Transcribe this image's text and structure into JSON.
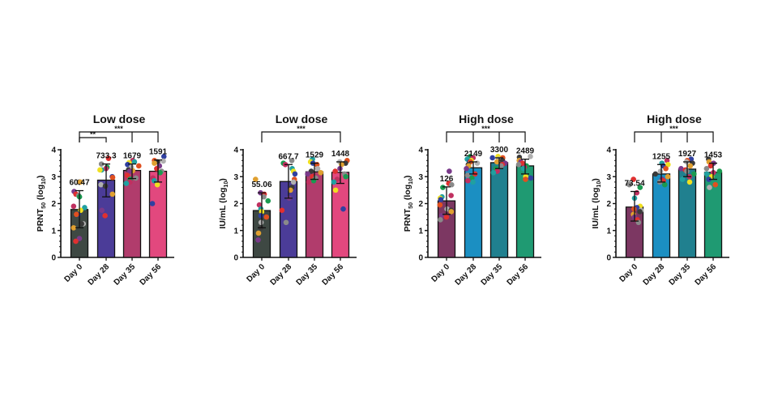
{
  "chart_data": [
    {
      "type": "bar",
      "title": "Low dose",
      "ylabel": {
        "main": "PRNT",
        "sub": "50",
        "suffix": " (log",
        "sub2": "10",
        "end": ")"
      },
      "ylim": [
        0,
        4
      ],
      "yticks": [
        "0",
        "1",
        "2",
        "3",
        "4"
      ],
      "categories": [
        "Day 0",
        "Day 28",
        "Day 35",
        "Day 56"
      ],
      "data_labels": [
        "60.47",
        "733.3",
        "1679",
        "1591"
      ],
      "values": [
        1.78,
        2.87,
        3.23,
        3.2
      ],
      "error": [
        [
          1.1,
          2.48
        ],
        [
          2.25,
          3.47
        ],
        [
          2.93,
          3.47
        ],
        [
          2.8,
          3.62
        ]
      ],
      "bar_colors": [
        "#3e4843",
        "#4b3c98",
        "#b13c6c",
        "#e2487e"
      ],
      "significance": [
        {
          "label": "**",
          "from": 0,
          "to": 1,
          "ticks": []
        },
        {
          "label": "***",
          "from": 0,
          "to": 3,
          "ticks": [
            2
          ]
        }
      ],
      "points": [
        [
          2.8,
          2.8,
          2.45,
          2.35,
          2.3,
          2.25,
          1.9,
          1.85,
          1.75,
          1.6,
          1.6,
          1.25,
          1.25,
          1.1,
          0.7,
          0.6
        ],
        [
          3.68,
          3.47,
          3.35,
          3.3,
          3.25,
          3.25,
          3.0,
          2.97,
          2.7,
          2.65,
          2.35,
          1.75,
          1.55
        ],
        [
          3.6,
          3.55,
          3.52,
          3.45,
          3.4,
          3.35,
          3.25,
          3.22,
          3.2,
          3.05,
          2.95,
          2.9,
          2.8,
          2.75
        ],
        [
          3.75,
          3.6,
          3.58,
          3.55,
          3.5,
          3.4,
          3.3,
          3.2,
          3.15,
          2.95,
          2.85,
          2.7,
          2.0
        ]
      ]
    },
    {
      "type": "bar",
      "title": "Low dose",
      "ylabel": {
        "main": "IU/mL",
        "sub": "",
        "suffix": " (log",
        "sub2": "10",
        "end": ")"
      },
      "ylim": [
        0,
        4
      ],
      "yticks": [
        "0",
        "1",
        "2",
        "3",
        "4"
      ],
      "categories": [
        "Day 0",
        "Day 28",
        "Day 35",
        "Day 56"
      ],
      "data_labels": [
        "55.06",
        "667.7",
        "1529",
        "1448"
      ],
      "values": [
        1.74,
        2.82,
        3.18,
        3.16
      ],
      "error": [
        [
          1.1,
          2.4
        ],
        [
          2.2,
          3.45
        ],
        [
          2.9,
          3.5
        ],
        [
          2.75,
          3.55
        ]
      ],
      "bar_colors": [
        "#3e4843",
        "#4b3c98",
        "#b13c6c",
        "#e2487e"
      ],
      "significance": [
        {
          "label": "***",
          "from": 0,
          "to": 3,
          "ticks": []
        }
      ],
      "points": [
        [
          2.9,
          2.4,
          2.35,
          2.25,
          2.1,
          1.95,
          1.8,
          1.7,
          1.55,
          1.5,
          1.3,
          1.1,
          0.9,
          0.65
        ],
        [
          3.6,
          3.5,
          3.45,
          3.3,
          3.2,
          3.1,
          2.9,
          2.8,
          2.6,
          2.5,
          2.2,
          1.75,
          1.3
        ],
        [
          3.65,
          3.55,
          3.5,
          3.45,
          3.3,
          3.2,
          3.15,
          3.1,
          3.0,
          2.95,
          2.85,
          2.8
        ],
        [
          3.6,
          3.55,
          3.5,
          3.45,
          3.3,
          3.2,
          3.1,
          3.0,
          2.9,
          2.8,
          2.5,
          1.8
        ]
      ]
    },
    {
      "type": "bar",
      "title": "High dose",
      "ylabel": {
        "main": "PRNT",
        "sub": "50",
        "suffix": " (log",
        "sub2": "10",
        "end": ")"
      },
      "ylim": [
        0,
        4
      ],
      "yticks": [
        "0",
        "1",
        "2",
        "3",
        "4"
      ],
      "categories": [
        "Day 0",
        "Day 28",
        "Day 35",
        "Day 56"
      ],
      "data_labels": [
        "126",
        "2149",
        "3300",
        "2489"
      ],
      "values": [
        2.1,
        3.33,
        3.52,
        3.4
      ],
      "error": [
        [
          1.6,
          2.62
        ],
        [
          3.1,
          3.55
        ],
        [
          3.3,
          3.7
        ],
        [
          3.1,
          3.65
        ]
      ],
      "bar_colors": [
        "#7c3762",
        "#1b8fc2",
        "#20808f",
        "#1f9a72"
      ],
      "significance": [
        {
          "label": "***",
          "from": 0,
          "to": 3,
          "ticks": [
            1,
            2
          ]
        }
      ],
      "points": [
        [
          3.2,
          2.75,
          2.7,
          2.6,
          2.3,
          2.25,
          2.2,
          2.15,
          1.95,
          1.8,
          1.75,
          1.7,
          1.55,
          1.5,
          1.4
        ],
        [
          3.75,
          3.7,
          3.65,
          3.6,
          3.55,
          3.55,
          3.5,
          3.45,
          3.4,
          3.3,
          3.1,
          3.05,
          2.95,
          2.85,
          2.8
        ],
        [
          3.75,
          3.7,
          3.7,
          3.65,
          3.6,
          3.55,
          3.5,
          3.45,
          3.4,
          3.3,
          3.2,
          3.15
        ],
        [
          3.75,
          3.72,
          3.6,
          3.55,
          3.5,
          3.45,
          3.4,
          3.35,
          3.3,
          3.0,
          2.95,
          2.9
        ]
      ]
    },
    {
      "type": "bar",
      "title": "High dose",
      "ylabel": {
        "main": "IU/mL",
        "sub": "",
        "suffix": " (log",
        "sub2": "10",
        "end": ")"
      },
      "ylim": [
        0,
        4
      ],
      "yticks": [
        "0",
        "1",
        "2",
        "3",
        "4"
      ],
      "categories": [
        "Day 0",
        "Day 28",
        "Day 35",
        "Day 56"
      ],
      "data_labels": [
        "73.54",
        "1255",
        "1927",
        "1453"
      ],
      "values": [
        1.87,
        3.1,
        3.28,
        3.16
      ],
      "error": [
        [
          1.35,
          2.45
        ],
        [
          2.8,
          3.45
        ],
        [
          3.0,
          3.55
        ],
        [
          2.9,
          3.5
        ]
      ],
      "bar_colors": [
        "#7c3762",
        "#1b8fc2",
        "#20808f",
        "#1f9a72"
      ],
      "significance": [
        {
          "label": "***",
          "from": 0,
          "to": 3,
          "ticks": [
            1,
            2
          ]
        }
      ],
      "points": [
        [
          2.9,
          2.7,
          2.6,
          2.4,
          2.2,
          1.9,
          1.85,
          1.8,
          1.75,
          1.7,
          1.6,
          1.5,
          1.4,
          1.3
        ],
        [
          3.6,
          3.5,
          3.45,
          3.4,
          3.3,
          3.2,
          3.1,
          3.0,
          2.9,
          2.85,
          2.8,
          2.7
        ],
        [
          3.65,
          3.6,
          3.55,
          3.5,
          3.4,
          3.3,
          3.25,
          3.2,
          3.1,
          3.0,
          2.9,
          2.8
        ],
        [
          3.65,
          3.55,
          3.5,
          3.4,
          3.3,
          3.2,
          3.15,
          3.1,
          3.0,
          2.9,
          2.7,
          2.6
        ]
      ]
    }
  ],
  "dot_colors": [
    "#3a3a3a",
    "#e0a030",
    "#7a3a8a",
    "#e03030",
    "#8a8a8a",
    "#1a9a50",
    "#c03060",
    "#20a0a0",
    "#f0e020",
    "#3040a0",
    "#e05020",
    "#b0b0b0"
  ]
}
